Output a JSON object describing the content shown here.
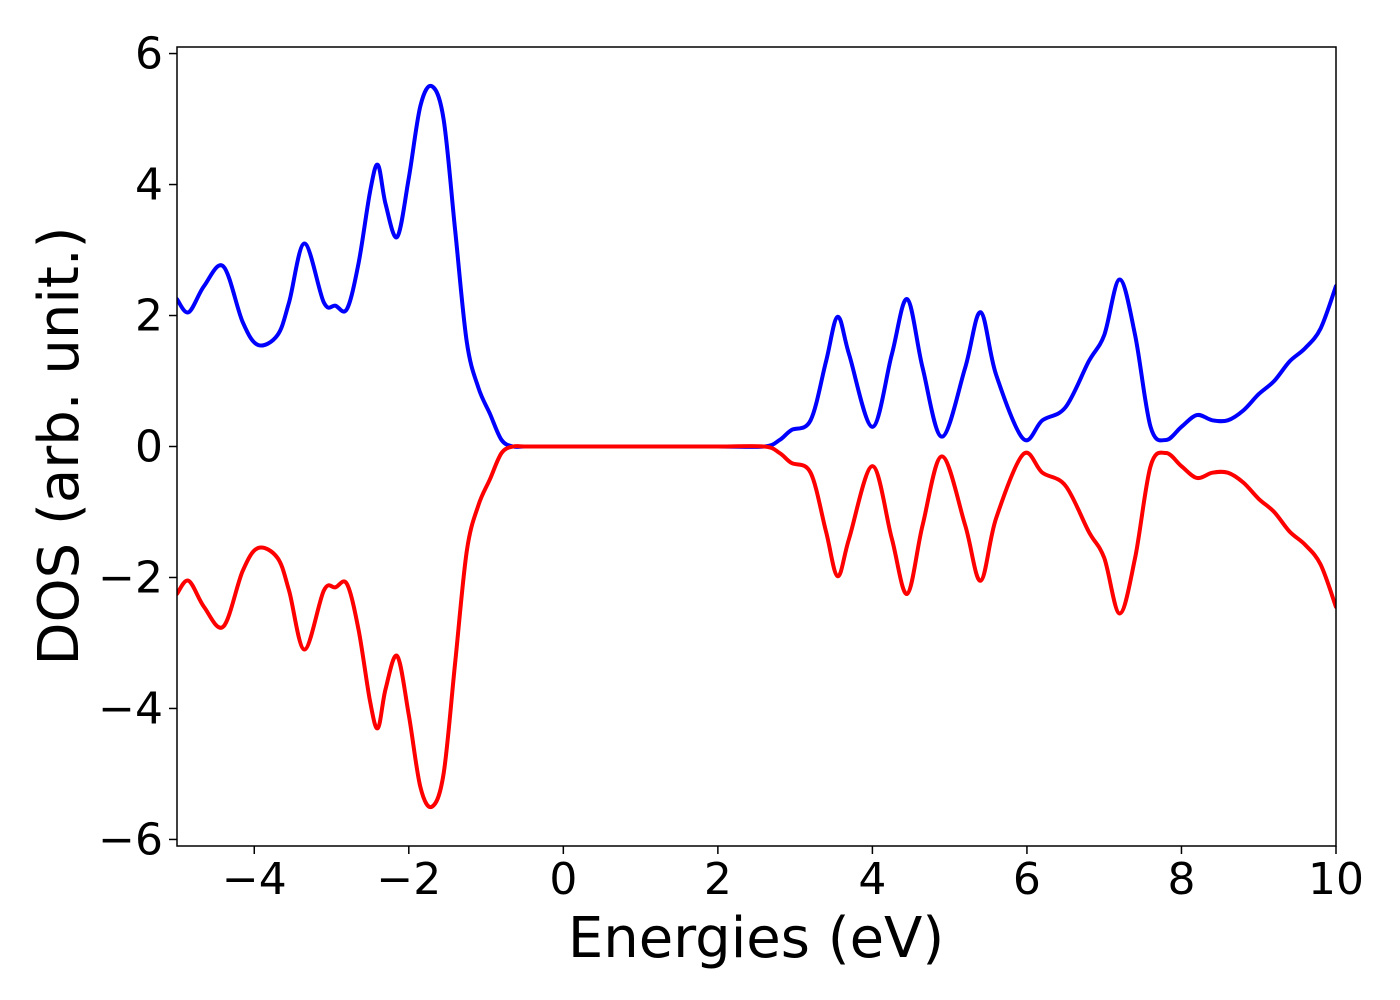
{
  "chart_data": {
    "type": "line",
    "title": "",
    "xlabel": "Energies (eV)",
    "ylabel": "DOS (arb. unit.)",
    "xlim": [
      -5,
      10
    ],
    "ylim": [
      -6.1,
      6.1
    ],
    "grid": false,
    "x_ticks": [
      -4,
      -2,
      0,
      2,
      4,
      6,
      8,
      10
    ],
    "x_tick_labels": [
      "−4",
      "−2",
      "0",
      "2",
      "4",
      "6",
      "8",
      "10"
    ],
    "y_ticks": [
      -6,
      -4,
      -2,
      0,
      2,
      4,
      6
    ],
    "y_tick_labels": [
      "−6",
      "−4",
      "−2",
      "0",
      "2",
      "4",
      "6"
    ],
    "series": [
      {
        "color": "#0000ff",
        "x": [
          -5.0,
          -4.85,
          -4.65,
          -4.4,
          -4.15,
          -3.95,
          -3.7,
          -3.55,
          -3.35,
          -3.1,
          -2.95,
          -2.8,
          -2.65,
          -2.5,
          -2.4,
          -2.3,
          -2.15,
          -2.0,
          -1.85,
          -1.7,
          -1.55,
          -1.4,
          -1.25,
          -1.1,
          -0.95,
          -0.8,
          -0.65,
          -0.5,
          0.0,
          1.0,
          2.0,
          2.6,
          2.8,
          2.95,
          3.2,
          3.4,
          3.55,
          3.7,
          4.0,
          4.25,
          4.45,
          4.65,
          4.9,
          5.2,
          5.4,
          5.6,
          5.95,
          6.2,
          6.5,
          6.8,
          7.0,
          7.2,
          7.4,
          7.6,
          7.8,
          8.0,
          8.2,
          8.4,
          8.6,
          8.8,
          9.0,
          9.2,
          9.4,
          9.6,
          9.8,
          10.0
        ],
        "y": [
          2.25,
          2.05,
          2.45,
          2.75,
          1.9,
          1.55,
          1.7,
          2.2,
          3.1,
          2.2,
          2.15,
          2.1,
          2.8,
          3.9,
          4.3,
          3.7,
          3.2,
          4.1,
          5.2,
          5.5,
          5.0,
          3.3,
          1.6,
          0.9,
          0.5,
          0.1,
          0.0,
          0.0,
          0.0,
          0.0,
          0.0,
          0.0,
          0.1,
          0.25,
          0.4,
          1.3,
          1.98,
          1.4,
          0.3,
          1.4,
          2.25,
          1.2,
          0.15,
          1.2,
          2.05,
          1.1,
          0.12,
          0.4,
          0.6,
          1.3,
          1.7,
          2.55,
          1.7,
          0.3,
          0.1,
          0.3,
          0.48,
          0.4,
          0.4,
          0.55,
          0.8,
          1.0,
          1.3,
          1.5,
          1.8,
          2.45
        ]
      },
      {
        "color": "#ff0000",
        "x": [
          -5.0,
          -4.85,
          -4.65,
          -4.4,
          -4.15,
          -3.95,
          -3.7,
          -3.55,
          -3.35,
          -3.1,
          -2.95,
          -2.8,
          -2.65,
          -2.5,
          -2.4,
          -2.3,
          -2.15,
          -2.0,
          -1.85,
          -1.7,
          -1.55,
          -1.4,
          -1.25,
          -1.1,
          -0.95,
          -0.8,
          -0.65,
          -0.5,
          0.0,
          1.0,
          2.0,
          2.6,
          2.8,
          2.95,
          3.2,
          3.4,
          3.55,
          3.7,
          4.0,
          4.25,
          4.45,
          4.65,
          4.9,
          5.2,
          5.4,
          5.6,
          5.95,
          6.2,
          6.5,
          6.8,
          7.0,
          7.2,
          7.4,
          7.6,
          7.8,
          8.0,
          8.2,
          8.4,
          8.6,
          8.8,
          9.0,
          9.2,
          9.4,
          9.6,
          9.8,
          10.0
        ],
        "y": [
          -2.25,
          -2.05,
          -2.45,
          -2.75,
          -1.9,
          -1.55,
          -1.7,
          -2.2,
          -3.1,
          -2.2,
          -2.15,
          -2.1,
          -2.8,
          -3.9,
          -4.3,
          -3.7,
          -3.2,
          -4.1,
          -5.2,
          -5.5,
          -5.0,
          -3.3,
          -1.6,
          -0.9,
          -0.5,
          -0.1,
          -0.0,
          -0.0,
          -0.0,
          -0.0,
          -0.0,
          -0.0,
          -0.1,
          -0.25,
          -0.4,
          -1.3,
          -1.98,
          -1.4,
          -0.3,
          -1.4,
          -2.25,
          -1.2,
          -0.15,
          -1.2,
          -2.05,
          -1.1,
          -0.12,
          -0.4,
          -0.6,
          -1.3,
          -1.7,
          -2.55,
          -1.7,
          -0.3,
          -0.1,
          -0.3,
          -0.48,
          -0.4,
          -0.4,
          -0.55,
          -0.8,
          -1.0,
          -1.3,
          -1.5,
          -1.8,
          -2.45
        ]
      }
    ]
  }
}
